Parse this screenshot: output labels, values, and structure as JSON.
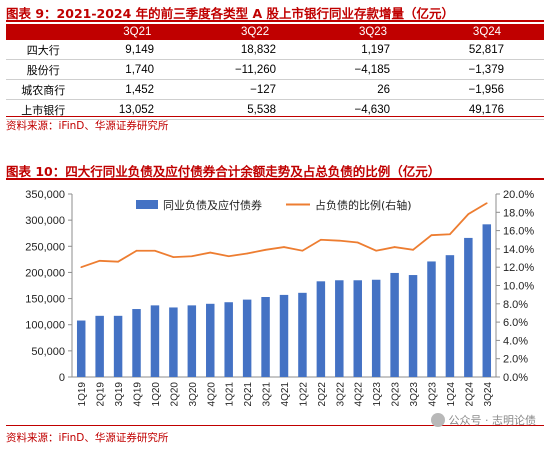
{
  "fig9": {
    "title": "图表 9：2021-2024 年的前三季度各类型 A 股上市银行同业存款增量（亿元）",
    "columns": [
      "",
      "3Q21",
      "3Q22",
      "3Q23",
      "3Q24"
    ],
    "rows": [
      {
        "label": "四大行",
        "values": [
          "9,149",
          "18,832",
          "1,197",
          "52,817"
        ]
      },
      {
        "label": "股份行",
        "values": [
          "1,740",
          "−11,260",
          "−4,185",
          "−1,379"
        ]
      },
      {
        "label": "城农商行",
        "values": [
          "1,452",
          "−127",
          "26",
          "−1,956"
        ]
      },
      {
        "label": "上市银行",
        "values": [
          "13,052",
          "5,538",
          "−4,630",
          "49,176"
        ]
      }
    ],
    "source": "资料来源：iFinD、华源证券研究所"
  },
  "fig10": {
    "title": "图表 10：四大行同业负债及应付债券合计余额走势及占总负债的比例（亿元）",
    "source": "资料来源：iFinD、华源证券研究所"
  },
  "watermark": "公众号 · 志明论债",
  "colors": {
    "accent": "#c00000",
    "bar": "#4472c4",
    "line": "#ed7d31"
  },
  "chart_data": {
    "type": "bar",
    "categories": [
      "1Q19",
      "2Q19",
      "3Q19",
      "4Q19",
      "1Q20",
      "2Q20",
      "3Q20",
      "4Q20",
      "1Q21",
      "2Q21",
      "3Q21",
      "4Q21",
      "1Q22",
      "2Q22",
      "3Q22",
      "4Q22",
      "1Q23",
      "2Q23",
      "3Q23",
      "4Q23",
      "1Q24",
      "2Q24",
      "3Q24"
    ],
    "series": [
      {
        "name": "同业负债及应付债券",
        "type": "bar",
        "axis": "left",
        "values": [
          108000,
          117000,
          117000,
          130000,
          137000,
          133000,
          137000,
          140000,
          143000,
          148000,
          153000,
          157000,
          161000,
          183000,
          185000,
          185000,
          186000,
          199000,
          195000,
          221000,
          233000,
          266000,
          292000
        ]
      },
      {
        "name": "占负债的比例(右轴)",
        "type": "line",
        "axis": "right",
        "values": [
          12.0,
          12.7,
          12.6,
          13.8,
          13.8,
          13.1,
          13.2,
          13.6,
          13.2,
          13.5,
          13.9,
          14.2,
          13.8,
          15.0,
          14.9,
          14.7,
          13.8,
          14.2,
          13.9,
          15.5,
          15.6,
          17.8,
          19.0
        ]
      }
    ],
    "y_left": {
      "min": 0,
      "max": 350000,
      "step": 50000,
      "ticks": [
        "0",
        "50,000",
        "100,000",
        "150,000",
        "200,000",
        "250,000",
        "300,000",
        "350,000"
      ]
    },
    "y_right": {
      "min": 0,
      "max": 20,
      "step": 2,
      "ticks": [
        "0.0%",
        "2.0%",
        "4.0%",
        "6.0%",
        "8.0%",
        "10.0%",
        "12.0%",
        "14.0%",
        "16.0%",
        "18.0%",
        "20.0%"
      ]
    },
    "grid": false,
    "legend": "top"
  }
}
